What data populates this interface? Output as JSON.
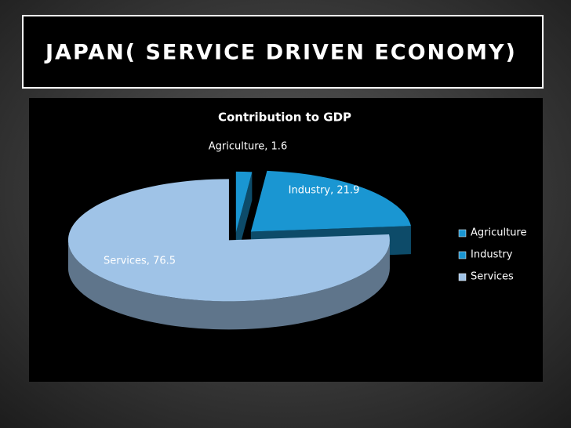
{
  "title": "JAPAN( SERVICE DRIVEN ECONOMY)",
  "chart_data": {
    "type": "pie",
    "title": "Contribution to GDP",
    "categories": [
      "Agriculture",
      "Industry",
      "Services"
    ],
    "values": [
      1.6,
      21.9,
      76.5
    ],
    "value_labels": [
      "Agriculture, 1.6",
      "Industry, 21.9",
      "Services, 76.5"
    ],
    "colors": [
      "#1a96d2",
      "#1a96d2",
      "#9fc3e7"
    ],
    "legend": "right"
  }
}
